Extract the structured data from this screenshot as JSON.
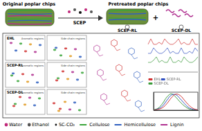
{
  "diagram": {
    "top": {
      "original": "Original poplar chips",
      "process": "SCEP",
      "pretreated": "Pretreated poplar chips",
      "residue": "SCEP-RL",
      "plus": "+",
      "dissolved": "SCEP-DL"
    },
    "hsqc": {
      "regions": [
        "Aromatic regions",
        "Side-chain regions"
      ],
      "panels": [
        {
          "label": "EHL"
        },
        {
          "label": "SCEP-RL"
        },
        {
          "label": "SCEP-DL"
        }
      ]
    },
    "legend": [
      {
        "label": "Water",
        "color": "#c0287a"
      },
      {
        "label": "Ethanol",
        "color": "#555555"
      },
      {
        "label": "SC-CO₂",
        "color": "#111111"
      },
      {
        "label": "Cellulose",
        "color": "#3aa53a"
      },
      {
        "label": "Hemicellulose",
        "color": "#3060c0"
      },
      {
        "label": "Lignin",
        "color": "#b03090"
      }
    ]
  },
  "chart_data": {
    "type": "line",
    "x": [
      2.0,
      2.25,
      2.5,
      2.75,
      3.0,
      3.25,
      3.5,
      3.75,
      4.0,
      4.25,
      4.5
    ],
    "series": [
      {
        "name": "EHL",
        "color": "#d03030",
        "values": [
          0,
          0.05,
          0.15,
          0.4,
          0.75,
          0.98,
          0.9,
          0.6,
          0.3,
          0.1,
          0.02
        ]
      },
      {
        "name": "SCEP-RL",
        "color": "#3050c0",
        "values": [
          0,
          0.08,
          0.25,
          0.6,
          0.92,
          0.95,
          0.7,
          0.4,
          0.15,
          0.05,
          0
        ]
      },
      {
        "name": "SCEP-DL",
        "color": "#3a9a3a",
        "values": [
          0.02,
          0.12,
          0.4,
          0.8,
          1.0,
          0.8,
          0.5,
          0.25,
          0.08,
          0.02,
          0
        ]
      }
    ],
    "xlim": [
      2.0,
      4.5
    ],
    "ylim": [
      0,
      1.1
    ],
    "tick_labels": false,
    "grid": false,
    "legend": "top-left"
  }
}
